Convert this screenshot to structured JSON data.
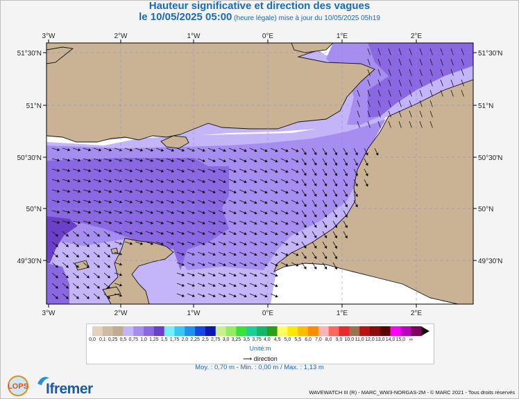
{
  "header": {
    "title": "Hauteur significative et direction des vagues",
    "date": "le 10/05/2025 05:00",
    "note": " (heure légale) mise à jour du 10/05/2025 05h19"
  },
  "axes": {
    "top_ticks": [
      "3°W",
      "2°W",
      "1°W",
      "0°E",
      "1°E",
      "2°E"
    ],
    "bottom_ticks": [
      "3°W",
      "2°W",
      "1°W",
      "0°E",
      "1°E",
      "2°E"
    ],
    "left_ticks": [
      "51°30'N",
      "51°N",
      "50°30'N",
      "50°N",
      "49°30'N"
    ],
    "right_ticks": [
      "51°30'N",
      "51°N",
      "50°30'N",
      "50°N",
      "49°30'N"
    ]
  },
  "legend": {
    "colors": [
      "#e2d2c0",
      "#cdbba4",
      "#c1ab90",
      "#c4b4f8",
      "#a58ef0",
      "#8a68e2",
      "#6a40c8",
      "#6cf2f8",
      "#36c8f0",
      "#1e90f2",
      "#1448e6",
      "#0c18b4",
      "#c8f08c",
      "#94ec64",
      "#38e23c",
      "#18d098",
      "#10b868",
      "#28a018",
      "#ffff60",
      "#ffe800",
      "#ffbc00",
      "#ff8c00",
      "#ffb4b4",
      "#ff6860",
      "#e82c2c",
      "#9c7050",
      "#b81414",
      "#8c0c0c",
      "#5c0000",
      "#ff00ff",
      "#c000c0",
      "#80005c"
    ],
    "labels": [
      "0,0",
      "0,1",
      "0,25",
      "0,5",
      "0,75",
      "1,0",
      "1,25",
      "1,5",
      "1,75",
      "2,0",
      "2,25",
      "2,5",
      "2,75",
      "3,0",
      "3,25",
      "3,5",
      "3,75",
      "4,0",
      "4,5",
      "5,0",
      "5,5",
      "6,0",
      "7,0",
      "8,0",
      "9,0",
      "10,0",
      "11,0",
      "12,0",
      "13,0",
      "14,0",
      "15,0",
      "∞"
    ],
    "unit": "Unité:m",
    "direction_label": "direction"
  },
  "stats": "Moy. : 0,70 m   -   Min. : 0,00 m / Max. : 1,13 m",
  "credit": "WAVEWATCH III (R) - MARC_WW3-NORGAS-2M - © MARC 2021 - Tous droits réservés",
  "logos": {
    "left": "LOPS",
    "right": "Ifremer"
  },
  "map_colors": {
    "land": "#c9b394",
    "sea_low": "#c4b4f8",
    "sea_mid": "#a58ef0",
    "sea_high": "#8a68e2",
    "sea_max": "#6a40c8"
  }
}
